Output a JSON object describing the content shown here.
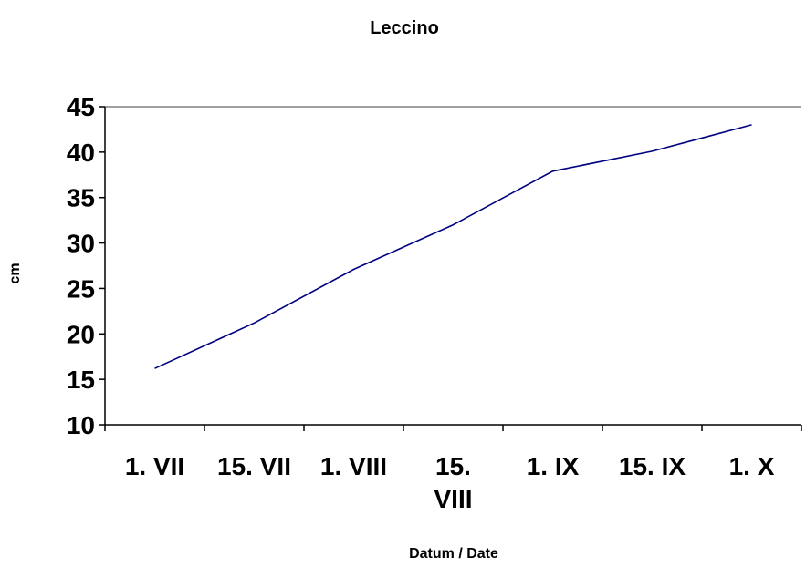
{
  "chart_data": {
    "type": "line",
    "title": "Leccino",
    "xlabel": "Datum / Date",
    "ylabel": "cm",
    "categories": [
      "1. VII",
      "15. VII",
      "1. VIII",
      "15. VIII",
      "1. IX",
      "15. IX",
      "1. X"
    ],
    "category_lines": [
      [
        "1. VII"
      ],
      [
        "15. VII"
      ],
      [
        "1. VIII"
      ],
      [
        "15.",
        "VIII"
      ],
      [
        "1. IX"
      ],
      [
        "15. IX"
      ],
      [
        "1. X"
      ]
    ],
    "series": [
      {
        "values": [
          16.2,
          21.2,
          27.1,
          32.0,
          37.9,
          40.1,
          43.0
        ],
        "color": "#000080"
      }
    ],
    "ylim": [
      10,
      45
    ],
    "yticks": [
      10,
      15,
      20,
      25,
      30,
      35,
      40,
      45
    ],
    "grid": false,
    "legend": "none",
    "top_border_color": "#808080",
    "axis_color": "#000000"
  }
}
